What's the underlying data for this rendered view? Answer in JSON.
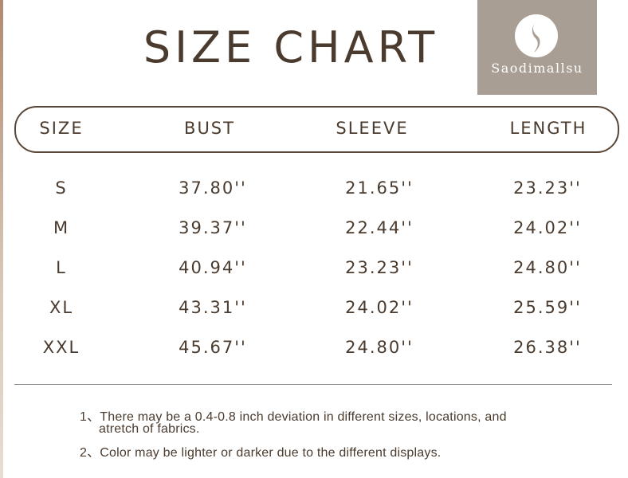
{
  "title": "SIZE CHART",
  "brand": {
    "name": "Saodimallsu",
    "bg_color": "#a89e94"
  },
  "table": {
    "headers": [
      "SIZE",
      "BUST",
      "SLEEVE",
      "LENGTH"
    ],
    "rows": [
      [
        "S",
        "37.80''",
        "21.65''",
        "23.23''"
      ],
      [
        "M",
        "39.37''",
        "22.44''",
        "24.02''"
      ],
      [
        "L",
        "40.94''",
        "23.23''",
        "24.80''"
      ],
      [
        "XL",
        "43.31''",
        "24.02''",
        "25.59''"
      ],
      [
        "XXL",
        "45.67''",
        "24.80''",
        "26.38''"
      ]
    ]
  },
  "notes": [
    "1、There may be a 0.4-0.8 inch deviation in different sizes, locations, and",
    "atretch of fabrics.",
    "2、Color may be lighter or darker due to the different displays."
  ]
}
